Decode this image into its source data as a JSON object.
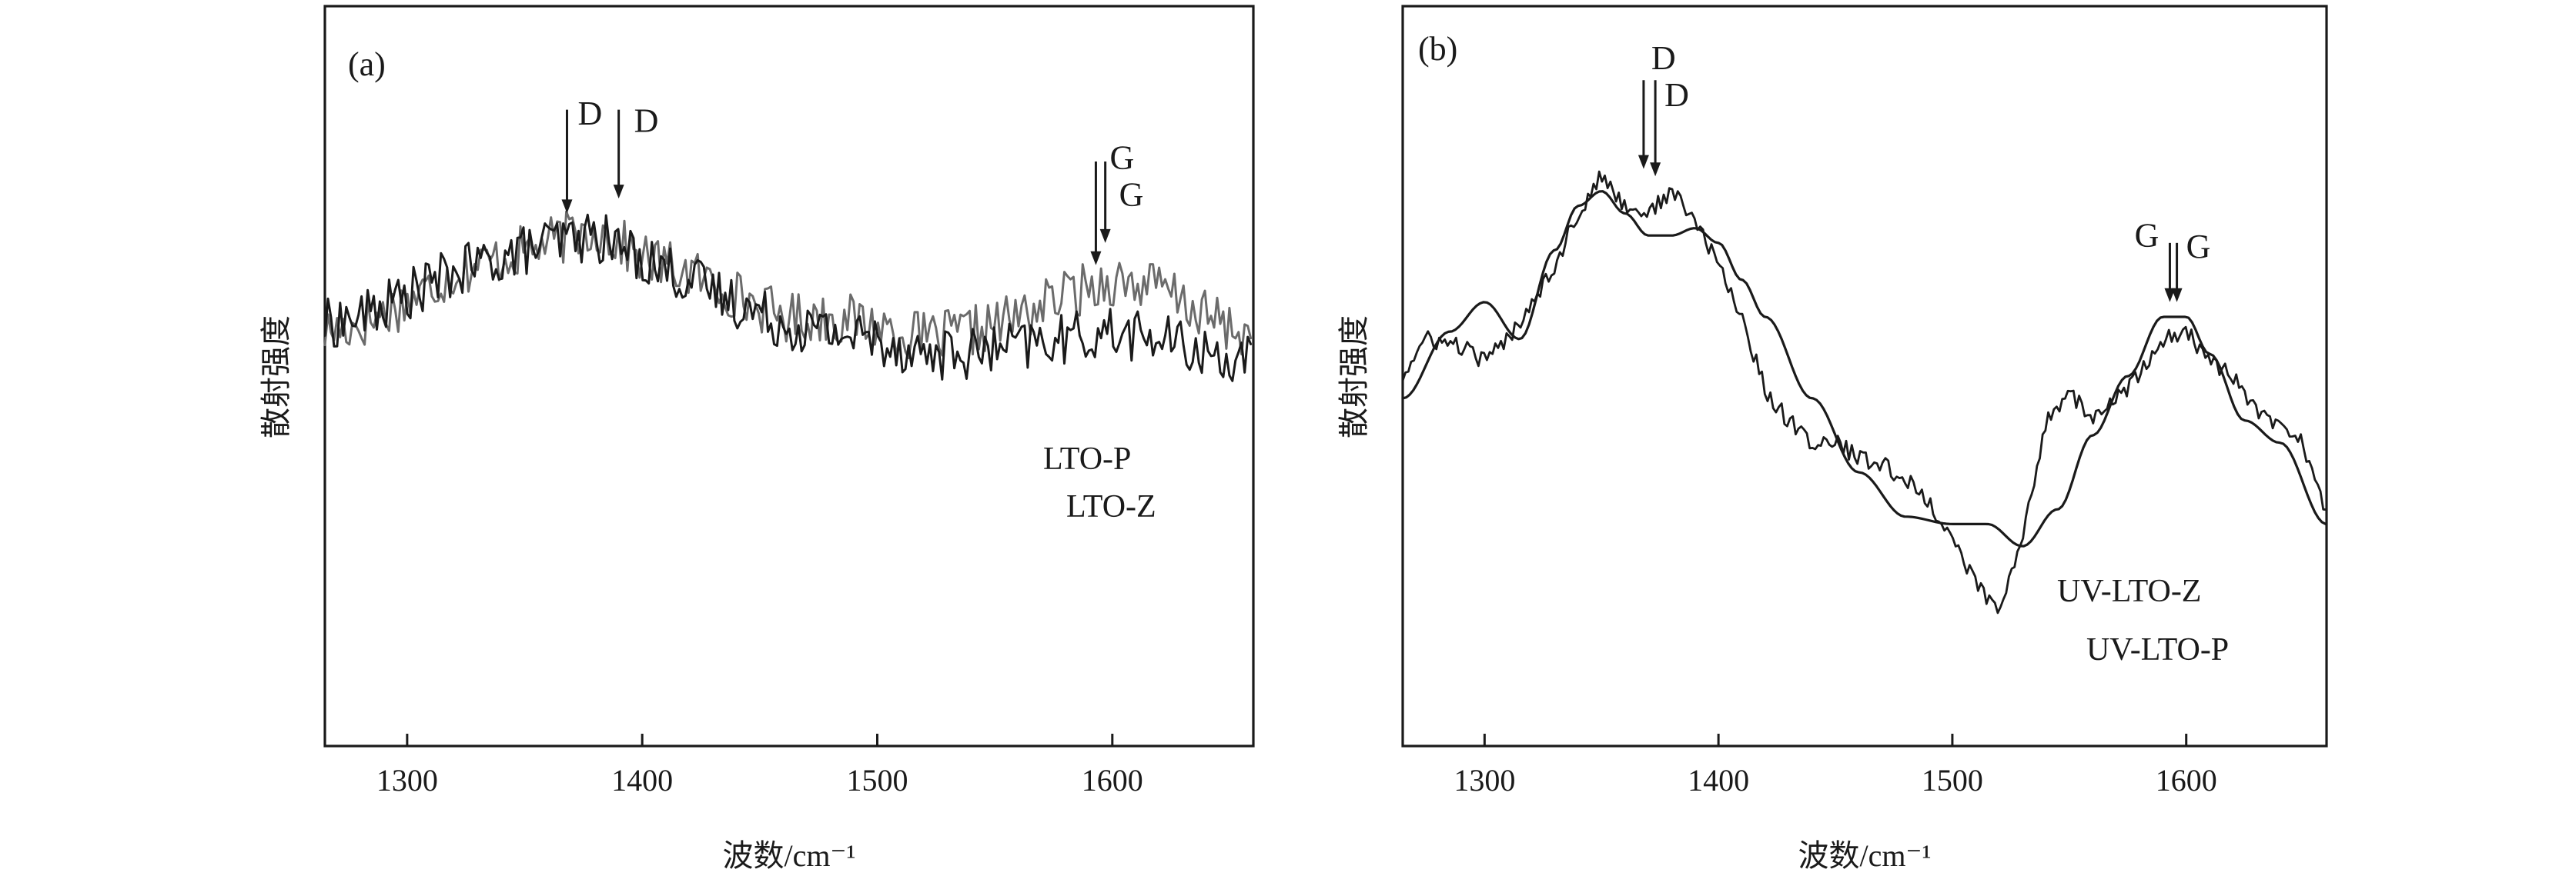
{
  "chart_data": [
    {
      "type": "line",
      "panel_label": "(a)",
      "xlabel": "波数/cm⁻¹",
      "ylabel": "散射强度",
      "xlim": [
        1265,
        1660
      ],
      "xticks": [
        1300,
        1400,
        1500,
        1600
      ],
      "ylim": [
        0,
        1
      ],
      "y_ticks_shown": false,
      "series": [
        {
          "name": "LTO-P",
          "color": "#6b6b6b",
          "x": [
            1265,
            1280,
            1300,
            1320,
            1340,
            1360,
            1380,
            1400,
            1420,
            1440,
            1460,
            1480,
            1500,
            1520,
            1540,
            1560,
            1580,
            1600,
            1620,
            1640,
            1660
          ],
          "y": [
            0.56,
            0.57,
            0.6,
            0.64,
            0.66,
            0.68,
            0.7,
            0.66,
            0.64,
            0.61,
            0.58,
            0.58,
            0.57,
            0.55,
            0.56,
            0.58,
            0.61,
            0.63,
            0.62,
            0.58,
            0.55
          ]
        },
        {
          "name": "LTO-Z",
          "color": "#1a1a1a",
          "x": [
            1265,
            1280,
            1300,
            1320,
            1340,
            1360,
            1380,
            1400,
            1420,
            1440,
            1460,
            1480,
            1500,
            1520,
            1540,
            1560,
            1580,
            1600,
            1620,
            1640,
            1660
          ],
          "y": [
            0.57,
            0.58,
            0.61,
            0.64,
            0.66,
            0.68,
            0.69,
            0.66,
            0.63,
            0.6,
            0.57,
            0.56,
            0.55,
            0.53,
            0.53,
            0.54,
            0.55,
            0.56,
            0.55,
            0.53,
            0.52
          ]
        }
      ],
      "annotations": [
        {
          "text": "D",
          "x": 1368,
          "arrow_to_y": 0.72,
          "label_side": "left"
        },
        {
          "text": "D",
          "x": 1390,
          "arrow_to_y": 0.74,
          "label_side": "right"
        },
        {
          "text": "G",
          "x": 1593,
          "arrow_to_y": 0.65,
          "label_side": "right-top"
        },
        {
          "text": "G",
          "x": 1597,
          "arrow_to_y": 0.68,
          "label_side": "right"
        }
      ]
    },
    {
      "type": "line",
      "panel_label": "(b)",
      "xlabel": "波数/cm⁻¹",
      "ylabel": "散射强度",
      "xlim": [
        1265,
        1660
      ],
      "xticks": [
        1300,
        1400,
        1500,
        1600
      ],
      "ylim": [
        0,
        1
      ],
      "y_ticks_shown": false,
      "series": [
        {
          "name": "UV-LTO-Z",
          "color": "#1a1a1a",
          "smooth": false,
          "x": [
            1265,
            1275,
            1290,
            1300,
            1310,
            1320,
            1330,
            1340,
            1350,
            1360,
            1370,
            1380,
            1390,
            1400,
            1410,
            1420,
            1430,
            1440,
            1450,
            1460,
            1470,
            1480,
            1490,
            1500,
            1510,
            1520,
            1530,
            1540,
            1550,
            1560,
            1570,
            1580,
            1590,
            1600,
            1610,
            1620,
            1630,
            1640,
            1650,
            1660
          ],
          "y": [
            0.5,
            0.55,
            0.54,
            0.52,
            0.55,
            0.6,
            0.65,
            0.72,
            0.77,
            0.73,
            0.72,
            0.75,
            0.71,
            0.65,
            0.58,
            0.48,
            0.44,
            0.41,
            0.41,
            0.39,
            0.38,
            0.36,
            0.33,
            0.28,
            0.22,
            0.18,
            0.28,
            0.44,
            0.48,
            0.44,
            0.47,
            0.5,
            0.55,
            0.56,
            0.52,
            0.5,
            0.45,
            0.43,
            0.41,
            0.31
          ]
        },
        {
          "name": "UV-LTO-P",
          "color": "#1a1a1a",
          "smooth": true,
          "x": [
            1265,
            1285,
            1300,
            1315,
            1330,
            1340,
            1350,
            1360,
            1370,
            1380,
            1390,
            1400,
            1410,
            1420,
            1440,
            1460,
            1480,
            1500,
            1515,
            1530,
            1545,
            1560,
            1575,
            1590,
            1600,
            1610,
            1625,
            1640,
            1660
          ],
          "y": [
            0.47,
            0.56,
            0.6,
            0.55,
            0.67,
            0.73,
            0.75,
            0.72,
            0.69,
            0.69,
            0.7,
            0.68,
            0.63,
            0.58,
            0.47,
            0.37,
            0.31,
            0.3,
            0.3,
            0.27,
            0.32,
            0.42,
            0.5,
            0.58,
            0.58,
            0.53,
            0.44,
            0.41,
            0.3
          ]
        }
      ],
      "annotations": [
        {
          "text": "D",
          "x": 1368,
          "arrow_to_y": 0.78,
          "label_side": "right-top"
        },
        {
          "text": "D",
          "x": 1373,
          "arrow_to_y": 0.77,
          "label_side": "right"
        },
        {
          "text": "G",
          "x": 1593,
          "arrow_to_y": 0.6,
          "label_side": "left"
        },
        {
          "text": "G",
          "x": 1596,
          "arrow_to_y": 0.6,
          "label_side": "right"
        }
      ]
    }
  ]
}
